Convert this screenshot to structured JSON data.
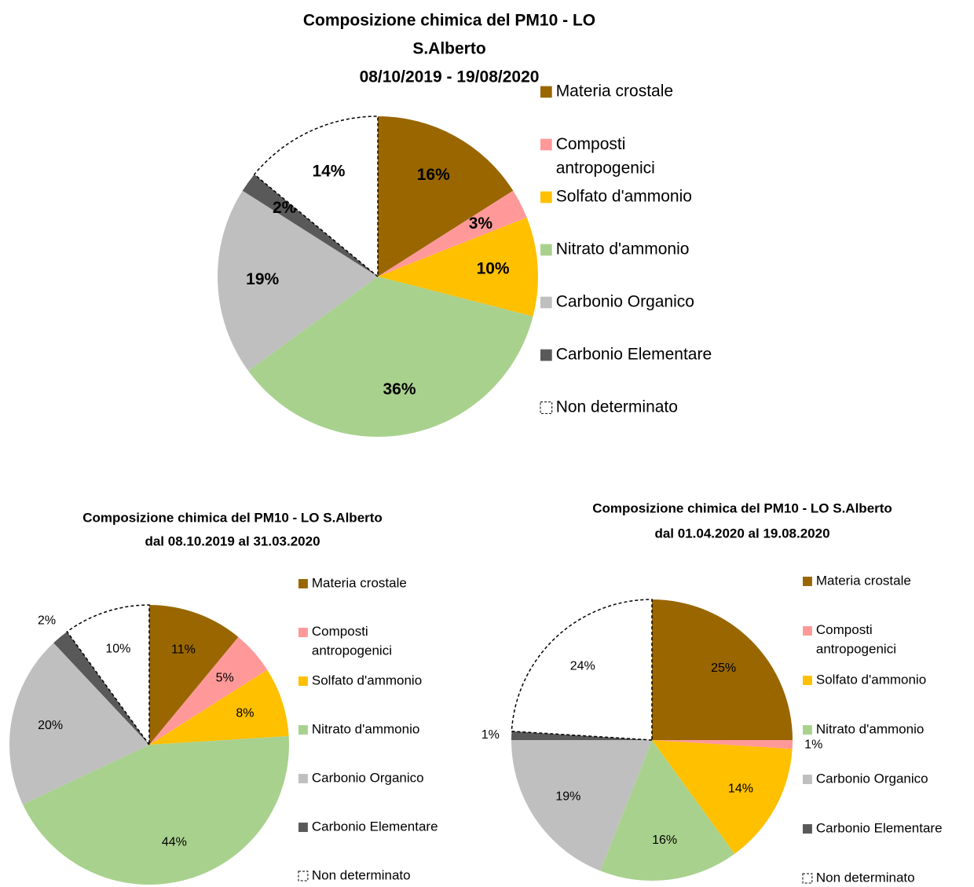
{
  "chart_data": [
    {
      "type": "pie",
      "title": [
        "Composizione chimica del PM10 - LO",
        "S.Alberto",
        "08/10/2019 - 19/08/2020"
      ],
      "categories": [
        "Materia crostale",
        "Composti antropogenici",
        "Solfato d'ammonio",
        "Nitrato d'ammonio",
        "Carbonio Organico",
        "Carbonio Elementare",
        "Non determinato"
      ],
      "values": [
        16,
        3,
        10,
        36,
        19,
        2,
        14
      ],
      "value_labels": [
        "16%",
        "3%",
        "10%",
        "36%",
        "19%",
        "2%",
        "14%"
      ],
      "colors": [
        "#996600",
        "#ff9999",
        "#ffc000",
        "#a9d18e",
        "#bfbfbf",
        "#595959",
        "#ffffff"
      ]
    },
    {
      "type": "pie",
      "title": [
        "Composizione chimica del PM10 - LO S.Alberto",
        "dal 08.10.2019 al 31.03.2020"
      ],
      "categories": [
        "Materia crostale",
        "Composti antropogenici",
        "Solfato d'ammonio",
        "Nitrato d'ammonio",
        "Carbonio Organico",
        "Carbonio Elementare",
        "Non determinato"
      ],
      "values": [
        11,
        5,
        8,
        44,
        20,
        2,
        10
      ],
      "value_labels": [
        "11%",
        "5%",
        "8%",
        "44%",
        "20%",
        "2%",
        "10%"
      ],
      "colors": [
        "#996600",
        "#ff9999",
        "#ffc000",
        "#a9d18e",
        "#bfbfbf",
        "#595959",
        "#ffffff"
      ]
    },
    {
      "type": "pie",
      "title": [
        "Composizione chimica del PM10 - LO S.Alberto",
        "dal 01.04.2020 al 19.08.2020"
      ],
      "categories": [
        "Materia crostale",
        "Composti antropogenici",
        "Solfato d'ammonio",
        "Nitrato d'ammonio",
        "Carbonio Organico",
        "Carbonio Elementare",
        "Non determinato"
      ],
      "values": [
        25,
        1,
        14,
        16,
        19,
        1,
        24
      ],
      "value_labels": [
        "25%",
        "1%",
        "14%",
        "16%",
        "19%",
        "1%",
        "24%"
      ],
      "colors": [
        "#996600",
        "#ff9999",
        "#ffc000",
        "#a9d18e",
        "#bfbfbf",
        "#595959",
        "#ffffff"
      ]
    }
  ]
}
